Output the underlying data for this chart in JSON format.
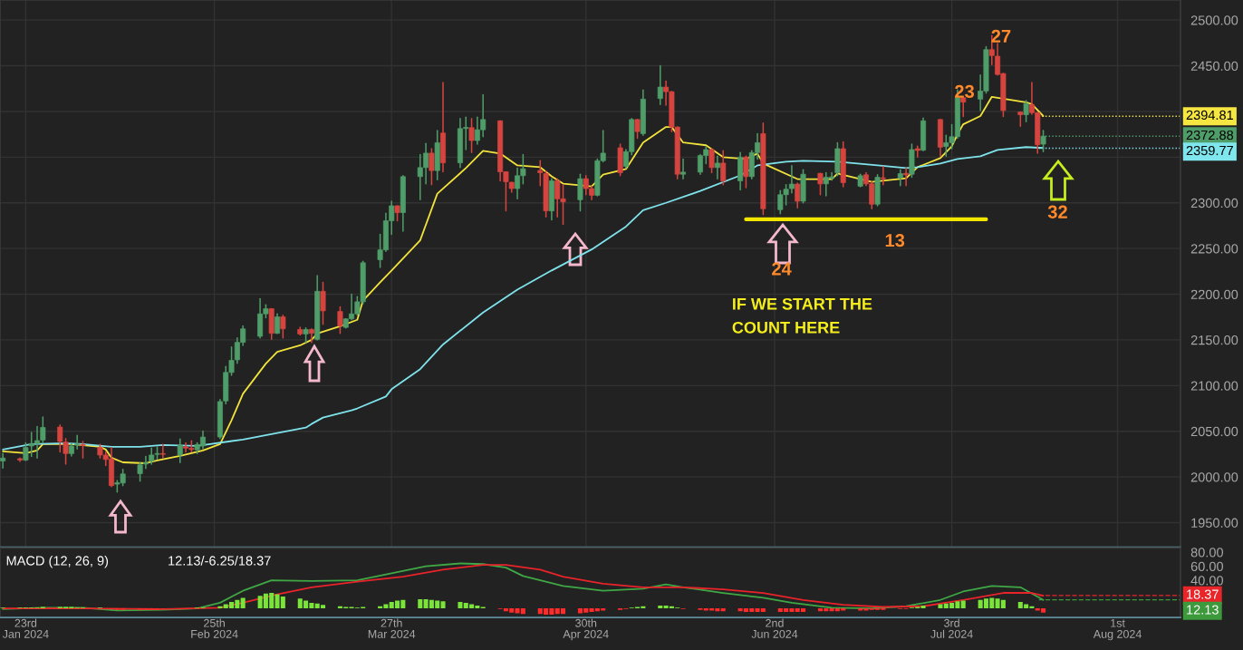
{
  "chart_data": [
    {
      "type": "candlestick",
      "x": [
        "2024-01-19",
        "2024-01-22",
        "2024-01-23",
        "2024-01-24",
        "2024-01-25",
        "2024-01-26",
        "2024-01-29",
        "2024-01-30",
        "2024-01-31",
        "2024-02-01",
        "2024-02-02",
        "2024-02-05",
        "2024-02-06",
        "2024-02-07",
        "2024-02-08",
        "2024-02-09",
        "2024-02-12",
        "2024-02-13",
        "2024-02-14",
        "2024-02-15",
        "2024-02-16",
        "2024-02-19",
        "2024-02-20",
        "2024-02-21",
        "2024-02-22",
        "2024-02-23",
        "2024-02-26",
        "2024-02-27",
        "2024-02-28",
        "2024-02-29",
        "2024-03-01",
        "2024-03-04",
        "2024-03-05",
        "2024-03-06",
        "2024-03-07",
        "2024-03-08",
        "2024-03-11",
        "2024-03-12",
        "2024-03-13",
        "2024-03-14",
        "2024-03-15",
        "2024-03-18",
        "2024-03-19",
        "2024-03-20",
        "2024-03-21",
        "2024-03-22",
        "2024-03-25",
        "2024-03-26",
        "2024-03-27",
        "2024-03-28",
        "2024-03-29",
        "2024-04-01",
        "2024-04-02",
        "2024-04-03",
        "2024-04-04",
        "2024-04-05",
        "2024-04-08",
        "2024-04-09",
        "2024-04-10",
        "2024-04-11",
        "2024-04-12",
        "2024-04-15",
        "2024-04-16",
        "2024-04-17",
        "2024-04-18",
        "2024-04-19",
        "2024-04-22",
        "2024-04-23",
        "2024-04-24",
        "2024-04-25",
        "2024-04-26",
        "2024-04-29",
        "2024-04-30",
        "2024-05-01",
        "2024-05-02",
        "2024-05-03",
        "2024-05-06",
        "2024-05-07",
        "2024-05-08",
        "2024-05-09",
        "2024-05-10",
        "2024-05-13",
        "2024-05-14",
        "2024-05-15",
        "2024-05-16",
        "2024-05-17",
        "2024-05-20",
        "2024-05-21",
        "2024-05-22",
        "2024-05-23",
        "2024-05-24",
        "2024-05-27",
        "2024-05-28",
        "2024-05-29",
        "2024-05-30",
        "2024-05-31",
        "2024-06-03",
        "2024-06-04",
        "2024-06-05",
        "2024-06-06",
        "2024-06-07",
        "2024-06-10",
        "2024-06-11",
        "2024-06-12",
        "2024-06-13",
        "2024-06-14",
        "2024-06-17",
        "2024-06-18",
        "2024-06-19",
        "2024-06-20",
        "2024-06-21",
        "2024-06-24",
        "2024-06-25",
        "2024-06-26",
        "2024-06-27",
        "2024-06-28",
        "2024-07-01",
        "2024-07-02",
        "2024-07-03",
        "2024-07-04",
        "2024-07-05",
        "2024-07-08",
        "2024-07-09",
        "2024-07-10",
        "2024-07-11",
        "2024-07-12",
        "2024-07-15",
        "2024-07-16",
        "2024-07-17",
        "2024-07-18",
        "2024-07-19"
      ],
      "ohlc": [
        [
          2017.4,
          2025.6,
          2009.9,
          2020.7
        ],
        [
          2020,
          2020.7,
          2017,
          2018.5
        ],
        [
          2018.4,
          2037.2,
          2018,
          2032.2
        ],
        [
          2033.9,
          2048.7,
          2022.4,
          2036.5
        ],
        [
          2036.5,
          2055.2,
          2020.7,
          2039.8
        ],
        [
          2040.4,
          2065.7,
          2037.2,
          2054.2
        ],
        [
          2054.6,
          2056.9,
          2027.3,
          2038.8
        ],
        [
          2038.1,
          2042.1,
          2014.1,
          2025.6
        ],
        [
          2025.6,
          2036.2,
          2023,
          2033.9
        ],
        [
          2035,
          2045.4,
          2030.6,
          2036.2
        ],
        [
          2035.5,
          2038.8,
          2020.7,
          2034.5
        ],
        [
          2032.2,
          2035.5,
          2020.7,
          2024
        ],
        [
          2024,
          2027.3,
          2012.5,
          2019.1
        ],
        [
          2019.7,
          2032.2,
          1989.5,
          1990.5
        ],
        [
          1992.1,
          1996.1,
          1983.6,
          1993.7
        ],
        [
          1993.4,
          2008.2,
          1990.5,
          2003.3
        ],
        [
          2003.6,
          2015.8,
          1995.4,
          2013.2
        ],
        [
          2014.1,
          2022.4,
          2009.2,
          2015.8
        ],
        [
          2017.4,
          2031.6,
          2014.1,
          2024
        ],
        [
          2024.7,
          2032.9,
          2019.7,
          2025.6
        ],
        [
          2025.6,
          2035.5,
          2020.7,
          2024.7
        ],
        [
          2024,
          2041.4,
          2015.8,
          2034.9
        ],
        [
          2032.9,
          2037.2,
          2027.3,
          2031.6
        ],
        [
          2031.3,
          2039.5,
          2027.3,
          2030
        ],
        [
          2029.6,
          2037.2,
          2025.6,
          2035.5
        ],
        [
          2033.9,
          2050.3,
          2030.6,
          2043.7
        ],
        [
          2043.7,
          2084.8,
          2042,
          2082.5
        ],
        [
          2083.2,
          2121,
          2080,
          2114.4
        ],
        [
          2114.4,
          2142.3,
          2111.2,
          2127.6
        ],
        [
          2128.2,
          2152.2,
          2124.3,
          2147.3
        ],
        [
          2147.3,
          2165.4,
          2144,
          2162.1
        ],
        [
          2153.9,
          2195,
          2152.2,
          2178.5
        ],
        [
          2178.5,
          2188.4,
          2174.2,
          2184.1
        ],
        [
          2184.1,
          2184.1,
          2150.6,
          2157.2
        ],
        [
          2157.2,
          2178.5,
          2157,
          2175.2
        ],
        [
          2175.2,
          2176.9,
          2152.2,
          2162.1
        ],
        [
          2161.4,
          2163.7,
          2155.5,
          2156.5
        ],
        [
          2156.5,
          2163.1,
          2147.3,
          2161.4
        ],
        [
          2161.4,
          2162.1,
          2147.3,
          2157.2
        ],
        [
          2150.6,
          2220.3,
          2149.9,
          2203.2
        ],
        [
          2203.2,
          2213,
          2167,
          2181.8
        ],
        [
          2181.1,
          2186.1,
          2157.2,
          2165.4
        ],
        [
          2163.7,
          2173,
          2163.1,
          2173
        ],
        [
          2173,
          2199.9,
          2172,
          2178.5
        ],
        [
          2178.5,
          2197.2,
          2176.9,
          2191.7
        ],
        [
          2191.7,
          2236,
          2189.4,
          2234.4
        ],
        [
          2237.7,
          2265.6,
          2229.4,
          2248.5
        ],
        [
          2248.5,
          2288.6,
          2246.9,
          2280.4
        ],
        [
          2280.4,
          2301.8,
          2265.6,
          2296.8
        ],
        [
          2296.8,
          2296.8,
          2280.4,
          2289.3
        ],
        [
          2289.3,
          2329.7,
          2268.9,
          2328.7
        ],
        [
          2328.7,
          2352.7,
          2303.4,
          2338.6
        ],
        [
          2338.6,
          2364.9,
          2320.8,
          2354.4
        ],
        [
          2354.4,
          2359.3,
          2319.8,
          2335.3
        ],
        [
          2335.3,
          2379,
          2325.4,
          2365.8
        ],
        [
          2376.4,
          2431.6,
          2334,
          2343.8
        ],
        [
          2343.8,
          2392.2,
          2338.6,
          2381.3
        ],
        [
          2381.3,
          2393.8,
          2358.3,
          2382.6
        ],
        [
          2382.3,
          2392.2,
          2355,
          2368.2
        ],
        [
          2368.2,
          2393.8,
          2364.2,
          2380
        ],
        [
          2380,
          2418.4,
          2372.4,
          2391.2
        ],
        [
          2389.8,
          2389.8,
          2324.1,
          2334
        ],
        [
          2334,
          2334,
          2291.2,
          2323.1
        ],
        [
          2322.5,
          2322.5,
          2311.6,
          2315.6
        ],
        [
          2315.6,
          2337.9,
          2304.4,
          2329.7
        ],
        [
          2329.7,
          2352.7,
          2320.8,
          2337.3
        ],
        [
          2335.3,
          2346.1,
          2318.8,
          2333
        ],
        [
          2332,
          2334.6,
          2284.7,
          2291.2
        ],
        [
          2291.2,
          2326.4,
          2281.4,
          2324.1
        ],
        [
          2324.1,
          2326.4,
          2284.7,
          2304.4
        ],
        [
          2304.4,
          2319.8,
          2276.4,
          2301.1
        ],
        [
          2303.4,
          2331.3,
          2291.2,
          2326.4
        ],
        [
          2326.4,
          2329.7,
          2309,
          2315.6
        ],
        [
          2315.6,
          2318.2,
          2303.4,
          2308.3
        ],
        [
          2308.3,
          2347.8,
          2307.7,
          2346.1
        ],
        [
          2346.1,
          2379,
          2345,
          2354.4
        ],
        [
          2360.3,
          2364.2,
          2329.7,
          2333
        ],
        [
          2340,
          2358.3,
          2337.9,
          2356
        ],
        [
          2356,
          2392.2,
          2352.7,
          2391.2
        ],
        [
          2391.2,
          2391.2,
          2370.8,
          2378
        ],
        [
          2375.7,
          2423.4,
          2374,
          2413.5
        ],
        [
          2414.2,
          2450,
          2407.6,
          2426.7
        ],
        [
          2426.7,
          2433.2,
          2407,
          2421.7
        ],
        [
          2421.7,
          2421.7,
          2378,
          2383
        ],
        [
          2383,
          2383,
          2326.4,
          2331.3
        ],
        [
          2331.3,
          2347.8,
          2326.4,
          2333.6
        ],
        [
          2333.6,
          2352.7,
          2331.3,
          2351.7
        ],
        [
          2351.7,
          2360.9,
          2342.8,
          2358.3
        ],
        [
          2358.3,
          2359.3,
          2333,
          2338.6
        ],
        [
          2338.6,
          2351,
          2326.4,
          2343.5
        ],
        [
          2343.5,
          2357,
          2319.8,
          2324.1
        ],
        [
          2324.1,
          2355,
          2314.2,
          2350
        ],
        [
          2350,
          2351,
          2316.6,
          2328.7
        ],
        [
          2328.7,
          2357,
          2326.4,
          2355
        ],
        [
          2355,
          2375.7,
          2347.8,
          2365.8
        ],
        [
          2375.7,
          2387.2,
          2287,
          2293.5
        ],
        [
          2292.5,
          2313.3,
          2288,
          2308.9
        ],
        [
          2308.9,
          2319.8,
          2297.8,
          2314.9
        ],
        [
          2315.6,
          2340.6,
          2310.9,
          2320.5
        ],
        [
          2320.5,
          2321.5,
          2294.5,
          2301.8
        ],
        [
          2301.8,
          2336.3,
          2300.1,
          2331.3
        ],
        [
          2332.3,
          2332.3,
          2309,
          2320.8
        ],
        [
          2320.8,
          2333,
          2307.7,
          2328
        ],
        [
          2327,
          2333,
          2324.7,
          2328.4
        ],
        [
          2333,
          2365.8,
          2329.7,
          2359.3
        ],
        [
          2359.3,
          2366.8,
          2317.5,
          2322.1
        ],
        [
          2318.2,
          2331.3,
          2317.5,
          2329.7
        ],
        [
          2330.7,
          2333,
          2318.8,
          2320.8
        ],
        [
          2320.8,
          2323.1,
          2293.5,
          2298.5
        ],
        [
          2298.5,
          2330.7,
          2296.8,
          2328
        ],
        [
          2327.4,
          2339.6,
          2319.8,
          2326.4
        ],
        [
          2327.4,
          2336.3,
          2318.8,
          2332
        ],
        [
          2332.3,
          2337.9,
          2318.8,
          2330.7
        ],
        [
          2331.3,
          2364.2,
          2328,
          2358.3
        ],
        [
          2359.3,
          2362,
          2350,
          2357.3
        ],
        [
          2357.6,
          2392.8,
          2357,
          2389.8
        ],
        [
          2391.2,
          2391.2,
          2351,
          2360.9
        ],
        [
          2361.6,
          2374,
          2351,
          2365.8
        ],
        [
          2365.8,
          2385.6,
          2359.3,
          2372.4
        ],
        [
          2372.4,
          2423.4,
          2370.8,
          2415.1
        ],
        [
          2415.1,
          2416.1,
          2394.4,
          2410.2
        ],
        [
          2413.5,
          2439.8,
          2401,
          2422.4
        ],
        [
          2422.4,
          2471,
          2420.1,
          2467.7
        ],
        [
          2467.7,
          2483,
          2451.3,
          2461.2
        ],
        [
          2460.5,
          2474.3,
          2439.8,
          2440.5
        ],
        [
          2441.5,
          2441.5,
          2394.4,
          2401
        ],
        [
          2399.4,
          2399.4,
          2383.9,
          2396.4
        ],
        [
          2396.4,
          2411.9,
          2388.9,
          2408.6
        ],
        [
          2407.6,
          2431.6,
          2397.1,
          2398.7
        ],
        [
          2398.7,
          2398.7,
          2354.4,
          2363.5
        ],
        [
          2364.2,
          2379,
          2356,
          2372.88
        ]
      ],
      "series": [
        {
          "type": "line",
          "color": "#f2e23c",
          "x": [
            "2024-01-19",
            "2024-01-23",
            "2024-01-25",
            "2024-01-26",
            "2024-01-31",
            "2024-02-05",
            "2024-02-06",
            "2024-02-07",
            "2024-02-09",
            "2024-02-13",
            "2024-02-15",
            "2024-02-19",
            "2024-02-21",
            "2024-02-23",
            "2024-02-26",
            "2024-02-28",
            "2024-03-01",
            "2024-03-05",
            "2024-03-07",
            "2024-03-11",
            "2024-03-13",
            "2024-03-14",
            "2024-03-18",
            "2024-03-21",
            "2024-03-22",
            "2024-03-25",
            "2024-03-27",
            "2024-04-01",
            "2024-04-04",
            "2024-04-09",
            "2024-04-12",
            "2024-04-15",
            "2024-04-18",
            "2024-04-22",
            "2024-04-24",
            "2024-04-26",
            "2024-05-01",
            "2024-05-03",
            "2024-05-07",
            "2024-05-10",
            "2024-05-14",
            "2024-05-15",
            "2024-05-17",
            "2024-05-21",
            "2024-05-24",
            "2024-05-28",
            "2024-05-30",
            "2024-05-31",
            "2024-06-06",
            "2024-06-12",
            "2024-06-13",
            "2024-06-19",
            "2024-06-25",
            "2024-06-27",
            "2024-07-01",
            "2024-07-03",
            "2024-07-04",
            "2024-07-05",
            "2024-07-08",
            "2024-07-10",
            "2024-07-11",
            "2024-07-15",
            "2024-07-16",
            "2024-07-17",
            "2024-07-19"
          ],
          "values": [
            2028,
            2026,
            2029,
            2036,
            2036,
            2033,
            2030,
            2021,
            2016,
            2015,
            2018,
            2023,
            2026,
            2029,
            2036,
            2062,
            2091,
            2124,
            2137,
            2144,
            2150,
            2157,
            2165,
            2172,
            2193,
            2213,
            2226,
            2259,
            2310,
            2338,
            2357,
            2354,
            2341,
            2339,
            2329,
            2321,
            2318,
            2331,
            2337,
            2366,
            2383,
            2383,
            2366,
            2363,
            2350,
            2348,
            2354,
            2343,
            2326,
            2326,
            2332,
            2323,
            2327,
            2339,
            2349,
            2362,
            2375,
            2386,
            2395,
            2416,
            2415,
            2411,
            2410,
            2408,
            2395
          ]
        },
        {
          "type": "line",
          "color": "#7fe3ec",
          "x": [
            "2024-01-19",
            "2024-01-24",
            "2024-01-30",
            "2024-02-02",
            "2024-02-07",
            "2024-02-12",
            "2024-02-16",
            "2024-02-22",
            "2024-03-01",
            "2024-03-12",
            "2024-03-13",
            "2024-03-15",
            "2024-03-20",
            "2024-03-21",
            "2024-03-26",
            "2024-03-27",
            "2024-04-01",
            "2024-04-05",
            "2024-04-12",
            "2024-04-18",
            "2024-04-24",
            "2024-05-01",
            "2024-05-07",
            "2024-05-10",
            "2024-05-14",
            "2024-05-20",
            "2024-05-27",
            "2024-05-30",
            "2024-06-04",
            "2024-06-07",
            "2024-06-13",
            "2024-06-20",
            "2024-06-25",
            "2024-06-27",
            "2024-07-01",
            "2024-07-04",
            "2024-07-08",
            "2024-07-11",
            "2024-07-16",
            "2024-07-19"
          ],
          "values": [
            2030,
            2036,
            2037,
            2036,
            2033,
            2033,
            2035,
            2034,
            2041,
            2054,
            2058,
            2065,
            2073,
            2075,
            2088,
            2096,
            2118,
            2145,
            2180,
            2205,
            2226,
            2249,
            2274,
            2292,
            2300,
            2313,
            2330,
            2341,
            2345,
            2346,
            2345,
            2341,
            2338,
            2339,
            2343,
            2348,
            2351,
            2358,
            2361,
            2360
          ]
        },
        {
          "type": "line",
          "color": "#f2e600",
          "x": [
            "2024-05-28",
            "2024-07-09"
          ],
          "values": [
            2282,
            2282
          ]
        }
      ],
      "xlim": [
        "2024-01-18T12:00",
        "2024-08-12"
      ],
      "xticks": [
        "2024-01-23",
        "2024-02-25",
        "2024-03-27",
        "2024-04-30",
        "2024-06-02",
        "2024-07-03",
        "2024-08-01"
      ],
      "ylim": [
        1923,
        2522
      ],
      "yticks": [
        {
          "value": 1950,
          "label": "1950.00"
        },
        {
          "value": 2000,
          "label": "2000.00"
        },
        {
          "value": 2050,
          "label": "2050.00"
        },
        {
          "value": 2100,
          "label": "2100.00"
        },
        {
          "value": 2150,
          "label": "2150.00"
        },
        {
          "value": 2200,
          "label": "2200.00"
        },
        {
          "value": 2250,
          "label": "2250.00"
        },
        {
          "value": 2300,
          "label": "2300.00"
        },
        {
          "value": 2350,
          "label": null
        },
        {
          "value": 2400,
          "label": null
        },
        {
          "value": 2450,
          "label": "2450.00"
        },
        {
          "value": 2500,
          "label": "2500.00"
        }
      ],
      "tick_labels": "y",
      "grid": true,
      "ref_lines": [
        {
          "axis": "y",
          "value": 2394.81,
          "label": "2394.81",
          "color": "#f5e642",
          "line_style": "dotted"
        },
        {
          "axis": "y",
          "value": 2372.88,
          "label": "2372.88",
          "color": "#4f9d69",
          "line_style": "dotted"
        },
        {
          "axis": "y",
          "value": 2359.77,
          "label": "2359.77",
          "color": "#7fe6ee",
          "line_style": "dotted"
        }
      ],
      "annotations": [
        "27",
        "23",
        "24",
        "13",
        "32",
        "IF WE START THE\nCOUNT HERE"
      ]
    },
    {
      "type": "line",
      "title": "MACD (12, 26, 9)",
      "subtitle": "12.13/-6.25/18.37",
      "x": [
        "2024-01-19",
        "2024-01-22",
        "2024-01-23",
        "2024-01-24",
        "2024-01-25",
        "2024-01-26",
        "2024-01-29",
        "2024-01-30",
        "2024-01-31",
        "2024-02-01",
        "2024-02-02",
        "2024-02-05",
        "2024-02-06",
        "2024-02-07",
        "2024-02-08",
        "2024-02-09",
        "2024-02-12",
        "2024-02-13",
        "2024-02-14",
        "2024-02-15",
        "2024-02-16",
        "2024-02-19",
        "2024-02-20",
        "2024-02-21",
        "2024-02-22",
        "2024-02-23",
        "2024-02-26",
        "2024-02-27",
        "2024-02-28",
        "2024-02-29",
        "2024-03-01",
        "2024-03-04",
        "2024-03-05",
        "2024-03-06",
        "2024-03-07",
        "2024-03-08",
        "2024-03-11",
        "2024-03-12",
        "2024-03-13",
        "2024-03-14",
        "2024-03-15",
        "2024-03-18",
        "2024-03-19",
        "2024-03-20",
        "2024-03-21",
        "2024-03-22",
        "2024-03-25",
        "2024-03-26",
        "2024-03-27",
        "2024-03-28",
        "2024-03-29",
        "2024-04-01",
        "2024-04-02",
        "2024-04-03",
        "2024-04-04",
        "2024-04-05",
        "2024-04-08",
        "2024-04-09",
        "2024-04-10",
        "2024-04-11",
        "2024-04-12",
        "2024-04-15",
        "2024-04-16",
        "2024-04-17",
        "2024-04-18",
        "2024-04-19",
        "2024-04-22",
        "2024-04-23",
        "2024-04-24",
        "2024-04-25",
        "2024-04-26",
        "2024-04-29",
        "2024-04-30",
        "2024-05-01",
        "2024-05-02",
        "2024-05-03",
        "2024-05-06",
        "2024-05-07",
        "2024-05-08",
        "2024-05-09",
        "2024-05-10",
        "2024-05-13",
        "2024-05-14",
        "2024-05-15",
        "2024-05-16",
        "2024-05-17",
        "2024-05-20",
        "2024-05-21",
        "2024-05-22",
        "2024-05-23",
        "2024-05-24",
        "2024-05-27",
        "2024-05-28",
        "2024-05-29",
        "2024-05-30",
        "2024-05-31",
        "2024-06-03",
        "2024-06-04",
        "2024-06-05",
        "2024-06-06",
        "2024-06-07",
        "2024-06-10",
        "2024-06-11",
        "2024-06-12",
        "2024-06-13",
        "2024-06-14",
        "2024-06-17",
        "2024-06-18",
        "2024-06-19",
        "2024-06-20",
        "2024-06-21",
        "2024-06-24",
        "2024-06-25",
        "2024-06-26",
        "2024-06-27",
        "2024-06-28",
        "2024-07-01",
        "2024-07-02",
        "2024-07-03",
        "2024-07-04",
        "2024-07-05",
        "2024-07-08",
        "2024-07-09",
        "2024-07-10",
        "2024-07-11",
        "2024-07-12",
        "2024-07-15",
        "2024-07-16",
        "2024-07-17",
        "2024-07-18",
        "2024-07-19"
      ],
      "series": [
        {
          "type": "bar",
          "color": "#7be43a",
          "values": [
            1,
            1,
            1,
            1,
            1,
            2,
            2,
            2,
            2,
            1,
            1,
            1,
            null,
            null,
            null,
            null,
            null,
            null,
            null,
            null,
            null,
            null,
            null,
            null,
            1,
            1,
            3,
            6,
            9,
            12,
            15,
            18,
            21,
            22,
            20,
            17,
            14,
            11,
            8,
            7,
            5,
            3,
            2,
            2,
            1,
            2,
            3,
            6,
            9,
            11,
            12,
            13,
            13,
            12,
            11,
            10,
            9,
            8,
            6,
            4,
            2,
            null,
            null,
            null,
            null,
            null,
            null,
            null,
            null,
            null,
            null,
            null,
            null,
            null,
            null,
            null,
            null,
            null,
            1,
            2,
            3,
            4,
            4,
            3,
            1,
            null,
            null,
            null,
            null,
            null,
            null,
            null,
            null,
            null,
            null,
            null,
            null,
            null,
            null,
            null,
            null,
            null,
            null,
            null,
            null,
            null,
            null,
            null,
            null,
            null,
            null,
            null,
            null,
            1,
            2,
            4,
            6,
            7,
            8,
            10,
            11,
            12,
            14,
            15,
            14,
            12,
            9,
            6,
            3,
            null,
            null
          ]
        },
        {
          "type": "bar",
          "color": "#ff2a2a",
          "values": [
            null,
            null,
            null,
            null,
            null,
            null,
            null,
            null,
            null,
            null,
            null,
            null,
            null,
            -1,
            -2,
            -2,
            -2,
            -2,
            -2,
            -2,
            -1,
            -1,
            -1,
            null,
            null,
            null,
            null,
            null,
            null,
            null,
            null,
            null,
            null,
            null,
            null,
            null,
            null,
            null,
            null,
            null,
            null,
            null,
            null,
            null,
            null,
            null,
            null,
            null,
            null,
            null,
            null,
            null,
            null,
            null,
            null,
            null,
            null,
            null,
            null,
            null,
            null,
            -1,
            -4,
            -6,
            -7,
            -8,
            -8,
            -9,
            -9,
            -8,
            -8,
            -7,
            -6,
            -5,
            -4,
            -3,
            -2,
            -1,
            null,
            null,
            null,
            null,
            null,
            null,
            null,
            -1,
            -2,
            -3,
            -3,
            -4,
            -4,
            -4,
            -5,
            -5,
            -5,
            -5,
            -5,
            -5,
            -5,
            -5,
            -5,
            -4,
            -4,
            -4,
            -4,
            -3,
            -3,
            -3,
            -2,
            -2,
            -2,
            -1,
            -1,
            null,
            null,
            null,
            null,
            null,
            null,
            null,
            null,
            null,
            null,
            null,
            null,
            null,
            null,
            null,
            null,
            -3,
            -6
          ]
        },
        {
          "type": "line",
          "color": "#3fa845",
          "x": [
            "2024-01-19",
            "2024-01-26",
            "2024-02-02",
            "2024-02-08",
            "2024-02-16",
            "2024-02-22",
            "2024-02-26",
            "2024-03-01",
            "2024-03-06",
            "2024-03-13",
            "2024-03-21",
            "2024-03-27",
            "2024-04-02",
            "2024-04-08",
            "2024-04-12",
            "2024-04-16",
            "2024-04-19",
            "2024-04-26",
            "2024-05-03",
            "2024-05-10",
            "2024-05-14",
            "2024-05-17",
            "2024-05-24",
            "2024-05-31",
            "2024-06-05",
            "2024-06-12",
            "2024-06-19",
            "2024-06-25",
            "2024-07-01",
            "2024-07-05",
            "2024-07-10",
            "2024-07-15",
            "2024-07-19"
          ],
          "values": [
            -1,
            1,
            1,
            -3,
            -2,
            0,
            8,
            25,
            40,
            39,
            40,
            50,
            60,
            64,
            63,
            58,
            46,
            32,
            25,
            28,
            34,
            30,
            22,
            15,
            8,
            1,
            0,
            3,
            12,
            24,
            32,
            30,
            12
          ]
        },
        {
          "type": "line",
          "color": "#e8232a",
          "x": [
            "2024-01-19",
            "2024-02-02",
            "2024-02-16",
            "2024-02-26",
            "2024-03-01",
            "2024-03-07",
            "2024-03-13",
            "2024-03-21",
            "2024-03-29",
            "2024-04-05",
            "2024-04-12",
            "2024-04-16",
            "2024-04-22",
            "2024-04-26",
            "2024-05-03",
            "2024-05-10",
            "2024-05-17",
            "2024-05-24",
            "2024-05-31",
            "2024-06-07",
            "2024-06-14",
            "2024-06-21",
            "2024-06-28",
            "2024-07-05",
            "2024-07-12",
            "2024-07-17",
            "2024-07-19"
          ],
          "values": [
            0,
            0,
            -1,
            1,
            8,
            20,
            30,
            38,
            45,
            55,
            62,
            62,
            55,
            45,
            35,
            30,
            30,
            27,
            22,
            12,
            5,
            2,
            3,
            12,
            22,
            22,
            18
          ]
        }
      ],
      "xlim": [
        "2024-01-18T12:00",
        "2024-08-12"
      ],
      "xticks": [
        {
          "value": "2024-01-23",
          "label": "23rd\nJan 2024"
        },
        {
          "value": "2024-02-25",
          "label": "25th\nFeb 2024"
        },
        {
          "value": "2024-03-27",
          "label": "27th\nMar 2024"
        },
        {
          "value": "2024-04-30",
          "label": "30th\nApr 2024"
        },
        {
          "value": "2024-06-02",
          "label": "2nd\nJun 2024"
        },
        {
          "value": "2024-07-03",
          "label": "3rd\nJul 2024"
        },
        {
          "value": "2024-08-01",
          "label": "1st\nAug 2024"
        }
      ],
      "ylim": [
        -13,
        86
      ],
      "yticks": [
        {
          "value": 40,
          "label": "40.00"
        },
        {
          "value": 60,
          "label": "60.00"
        },
        {
          "value": 80,
          "label": "80.00"
        }
      ],
      "ref_lines": [
        {
          "axis": "y",
          "value": 18.37,
          "label": "18.37",
          "color": "#e8262a",
          "line_style": "dashed"
        },
        {
          "axis": "y",
          "value": 12.13,
          "label": "12.13",
          "color": "#3c9a3c",
          "line_style": "dashed"
        }
      ]
    }
  ]
}
